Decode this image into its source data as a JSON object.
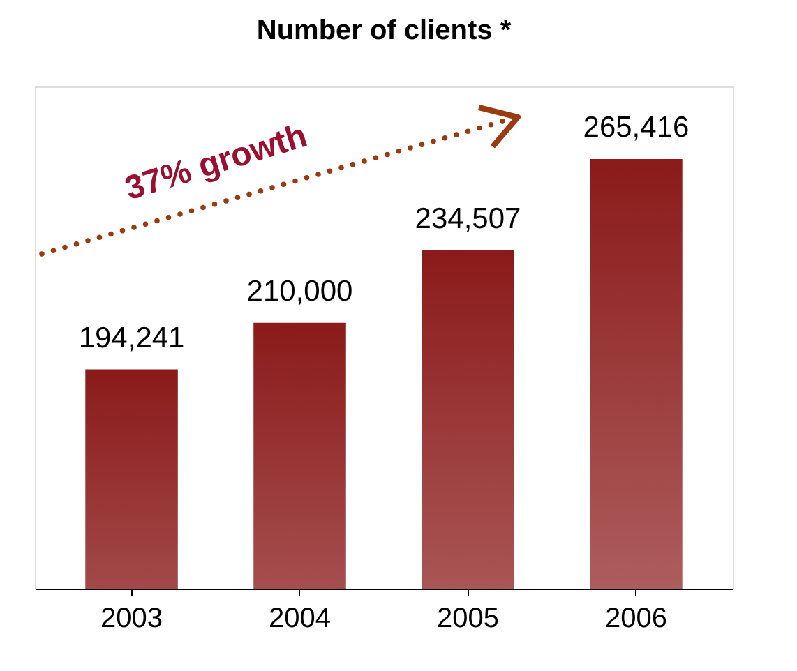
{
  "chart_data": {
    "type": "bar",
    "title": "Number of clients *",
    "categories": [
      "2003",
      "2004",
      "2005",
      "2006"
    ],
    "values": [
      194241,
      210000,
      234507,
      265416
    ],
    "value_labels": [
      "194,241",
      "210,000",
      "234,507",
      "265,416"
    ],
    "color": "#8b1a1a",
    "ylim": [
      120000,
      290000
    ],
    "tick_labels": "x",
    "annotations": [
      "37% growth"
    ]
  }
}
